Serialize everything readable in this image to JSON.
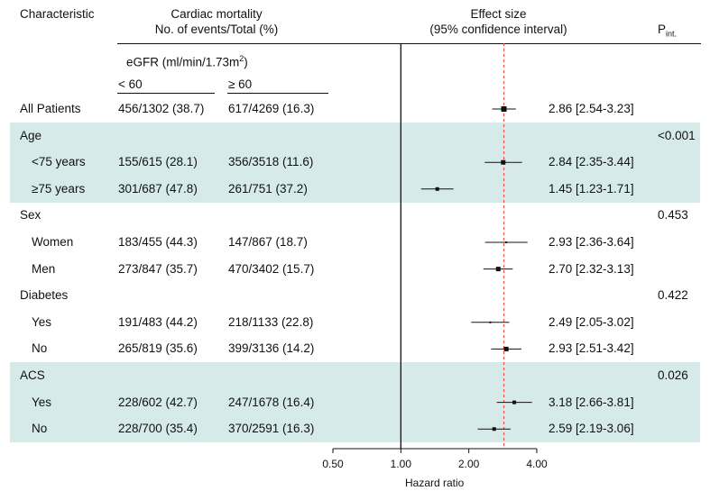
{
  "header": {
    "characteristic": "Characteristic",
    "mortality_line1": "Cardiac mortality",
    "mortality_line2": "No. of events/Total (%)",
    "effect_line1": "Effect size",
    "effect_line2": "(95% confidence interval)",
    "p_label_main": "P",
    "p_label_sub": "int.",
    "egfr_label": "eGFR (ml/min/1.73m",
    "egfr_sup": "2",
    "egfr_close": ")",
    "col_lt60": "< 60",
    "col_ge60": "≥ 60"
  },
  "colors": {
    "shade": "#d6ebe9",
    "reference_line": "#d9534f",
    "ink": "#111111"
  },
  "chart_data": {
    "type": "forest",
    "xlabel": "Hazard ratio",
    "x_scale": "log",
    "xlim": [
      0.5,
      4.0
    ],
    "x_ticks": [
      0.5,
      1.0,
      2.0,
      4.0
    ],
    "x_tick_labels": [
      "0.50",
      "1.00",
      "2.00",
      "4.00"
    ],
    "null_line": 1.0,
    "overall_effect_line": 2.86,
    "rows": [
      {
        "label": "All Patients",
        "indent": false,
        "group": false,
        "shaded": false,
        "lt60": "456/1302 (38.7)",
        "ge60": "617/4269 (16.3)",
        "hr": 2.86,
        "lo": 2.54,
        "hi": 3.23,
        "marker": "large",
        "effect_text": "2.86 [2.54-3.23]",
        "p": ""
      },
      {
        "label": "Age",
        "indent": false,
        "group": true,
        "shaded": true,
        "lt60": "",
        "ge60": "",
        "hr": null,
        "lo": null,
        "hi": null,
        "marker": "",
        "effect_text": "",
        "p": "<0.001"
      },
      {
        "label": "<75 years",
        "indent": true,
        "group": false,
        "shaded": true,
        "lt60": "155/615 (28.1)",
        "ge60": "356/3518 (11.6)",
        "hr": 2.84,
        "lo": 2.35,
        "hi": 3.44,
        "marker": "medium",
        "effect_text": "2.84 [2.35-3.44]",
        "p": ""
      },
      {
        "label": "≥75 years",
        "indent": true,
        "group": false,
        "shaded": true,
        "lt60": "301/687 (47.8)",
        "ge60": "261/751 (37.2)",
        "hr": 1.45,
        "lo": 1.23,
        "hi": 1.71,
        "marker": "small",
        "effect_text": "1.45 [1.23-1.71]",
        "p": ""
      },
      {
        "label": "Sex",
        "indent": false,
        "group": true,
        "shaded": false,
        "lt60": "",
        "ge60": "",
        "hr": null,
        "lo": null,
        "hi": null,
        "marker": "",
        "effect_text": "",
        "p": "0.453"
      },
      {
        "label": "Women",
        "indent": true,
        "group": false,
        "shaded": false,
        "lt60": "183/455 (44.3)",
        "ge60": "147/867 (18.7)",
        "hr": 2.93,
        "lo": 2.36,
        "hi": 3.64,
        "marker": "tiny",
        "effect_text": "2.93 [2.36-3.64]",
        "p": ""
      },
      {
        "label": "Men",
        "indent": true,
        "group": false,
        "shaded": false,
        "lt60": "273/847 (35.7)",
        "ge60": "470/3402 (15.7)",
        "hr": 2.7,
        "lo": 2.32,
        "hi": 3.13,
        "marker": "medium",
        "effect_text": "2.70 [2.32-3.13]",
        "p": ""
      },
      {
        "label": "Diabetes",
        "indent": false,
        "group": true,
        "shaded": false,
        "lt60": "",
        "ge60": "",
        "hr": null,
        "lo": null,
        "hi": null,
        "marker": "",
        "effect_text": "",
        "p": "0.422"
      },
      {
        "label": "Yes",
        "indent": true,
        "group": false,
        "shaded": false,
        "lt60": "191/483 (44.2)",
        "ge60": "218/1133 (22.8)",
        "hr": 2.49,
        "lo": 2.05,
        "hi": 3.02,
        "marker": "tiny",
        "effect_text": "2.49 [2.05-3.02]",
        "p": ""
      },
      {
        "label": "No",
        "indent": true,
        "group": false,
        "shaded": false,
        "lt60": "265/819 (35.6)",
        "ge60": "399/3136 (14.2)",
        "hr": 2.93,
        "lo": 2.51,
        "hi": 3.42,
        "marker": "medium",
        "effect_text": "2.93 [2.51-3.42]",
        "p": ""
      },
      {
        "label": "ACS",
        "indent": false,
        "group": true,
        "shaded": true,
        "lt60": "",
        "ge60": "",
        "hr": null,
        "lo": null,
        "hi": null,
        "marker": "",
        "effect_text": "",
        "p": "0.026"
      },
      {
        "label": "Yes",
        "indent": true,
        "group": false,
        "shaded": true,
        "lt60": "228/602 (42.7)",
        "ge60": "247/1678 (16.4)",
        "hr": 3.18,
        "lo": 2.66,
        "hi": 3.81,
        "marker": "small",
        "effect_text": "3.18 [2.66-3.81]",
        "p": ""
      },
      {
        "label": "No",
        "indent": true,
        "group": false,
        "shaded": true,
        "lt60": "228/700 (35.4)",
        "ge60": "370/2591 (16.3)",
        "hr": 2.59,
        "lo": 2.19,
        "hi": 3.06,
        "marker": "small",
        "effect_text": "2.59 [2.19-3.06]",
        "p": ""
      }
    ]
  }
}
